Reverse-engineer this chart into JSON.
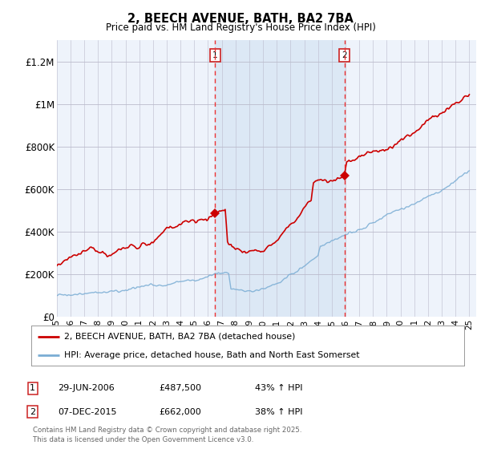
{
  "title": "2, BEECH AVENUE, BATH, BA2 7BA",
  "subtitle": "Price paid vs. HM Land Registry's House Price Index (HPI)",
  "background_color": "#ffffff",
  "plot_bg_color": "#eef3fb",
  "ylim": [
    0,
    1300000
  ],
  "yticks": [
    0,
    200000,
    400000,
    600000,
    800000,
    1000000,
    1200000
  ],
  "ytick_labels": [
    "£0",
    "£200K",
    "£400K",
    "£600K",
    "£800K",
    "£1M",
    "£1.2M"
  ],
  "xstart_year": 1995,
  "xend_year": 2025,
  "sale1_year": 2006.5,
  "sale1_value": 487500,
  "sale1_label": "1",
  "sale1_date": "29-JUN-2006",
  "sale1_pct": "43% ↑ HPI",
  "sale2_year": 2015.92,
  "sale2_value": 662000,
  "sale2_label": "2",
  "sale2_date": "07-DEC-2015",
  "sale2_pct": "38% ↑ HPI",
  "red_line_color": "#cc0000",
  "blue_line_color": "#7aadd4",
  "vline_color": "#ee3333",
  "shade_color": "#dce8f5",
  "legend_line1": "2, BEECH AVENUE, BATH, BA2 7BA (detached house)",
  "legend_line2": "HPI: Average price, detached house, Bath and North East Somerset",
  "footer": "Contains HM Land Registry data © Crown copyright and database right 2025.\nThis data is licensed under the Open Government Licence v3.0."
}
